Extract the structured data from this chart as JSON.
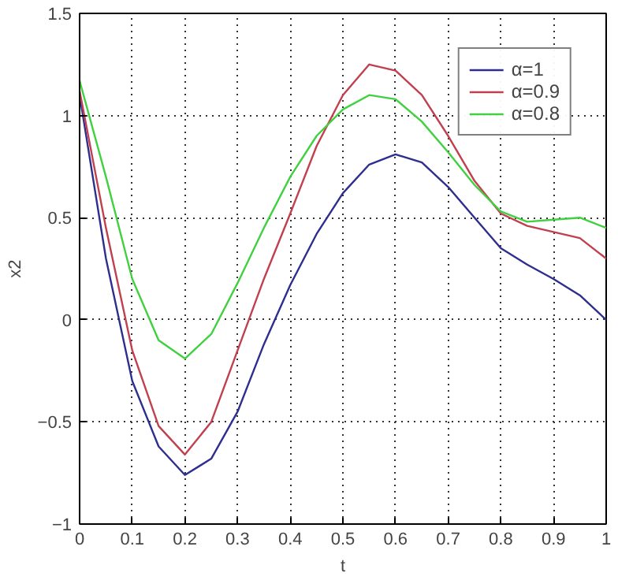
{
  "chart_data": {
    "type": "line",
    "xlabel": "t",
    "ylabel": "x2",
    "x": [
      0,
      0.05,
      0.1,
      0.15,
      0.2,
      0.25,
      0.3,
      0.35,
      0.4,
      0.45,
      0.5,
      0.55,
      0.6,
      0.65,
      0.7,
      0.75,
      0.8,
      0.85,
      0.9,
      0.95,
      1
    ],
    "series": [
      {
        "name": "α=1",
        "color": "#2e2e8f",
        "values": [
          1.1,
          0.3,
          -0.3,
          -0.62,
          -0.76,
          -0.68,
          -0.45,
          -0.12,
          0.17,
          0.42,
          0.62,
          0.76,
          0.81,
          0.77,
          0.65,
          0.5,
          0.35,
          0.27,
          0.2,
          0.12,
          0.0
        ]
      },
      {
        "name": "α=0.9",
        "color": "#c0404f",
        "values": [
          1.12,
          0.45,
          -0.15,
          -0.52,
          -0.66,
          -0.5,
          -0.15,
          0.2,
          0.52,
          0.85,
          1.1,
          1.25,
          1.22,
          1.1,
          0.9,
          0.68,
          0.52,
          0.46,
          0.43,
          0.4,
          0.3
        ]
      },
      {
        "name": "α=0.8",
        "color": "#40d040",
        "values": [
          1.17,
          0.7,
          0.2,
          -0.1,
          -0.19,
          -0.07,
          0.18,
          0.45,
          0.7,
          0.9,
          1.03,
          1.1,
          1.08,
          0.97,
          0.82,
          0.66,
          0.53,
          0.48,
          0.49,
          0.5,
          0.45
        ]
      }
    ],
    "xlim": [
      0,
      1
    ],
    "ylim": [
      -1,
      1.5
    ],
    "xticks": [
      0,
      0.1,
      0.2,
      0.3,
      0.4,
      0.5,
      0.6,
      0.7,
      0.8,
      0.9,
      1
    ],
    "yticks": [
      -1,
      -0.5,
      0,
      0.5,
      1,
      1.5
    ],
    "grid": true,
    "legend": "top right",
    "line_style": "solid"
  }
}
